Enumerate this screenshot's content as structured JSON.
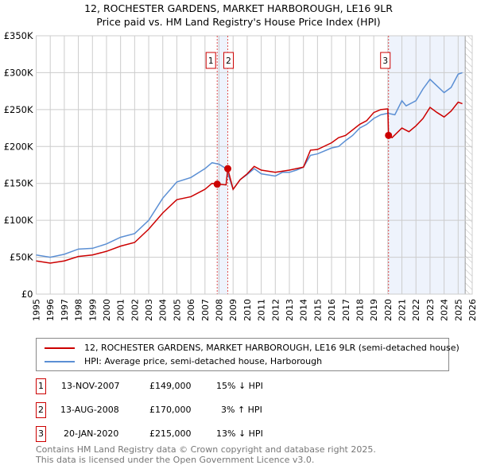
{
  "title_line1": "12, ROCHESTER GARDENS, MARKET HARBOROUGH, LE16 9LR",
  "title_line2": "Price paid vs. HM Land Registry's House Price Index (HPI)",
  "chart_data": {
    "type": "line",
    "title": "12, ROCHESTER GARDENS, MARKET HARBOROUGH, LE16 9LR — Price paid vs. HM Land Registry's House Price Index (HPI)",
    "xlim": [
      1995,
      2026
    ],
    "ylim": [
      0,
      350000
    ],
    "x_ticks": [
      "1995",
      "1996",
      "1997",
      "1998",
      "1999",
      "2000",
      "2001",
      "2002",
      "2003",
      "2004",
      "2005",
      "2006",
      "2007",
      "2008",
      "2009",
      "2010",
      "2011",
      "2012",
      "2013",
      "2014",
      "2015",
      "2016",
      "2017",
      "2018",
      "2019",
      "2020",
      "2021",
      "2022",
      "2023",
      "2024",
      "2025",
      "2026"
    ],
    "y_ticks": [
      {
        "v": 0,
        "label": "£0"
      },
      {
        "v": 50000,
        "label": "£50K"
      },
      {
        "v": 100000,
        "label": "£100K"
      },
      {
        "v": 150000,
        "label": "£150K"
      },
      {
        "v": 200000,
        "label": "£200K"
      },
      {
        "v": 250000,
        "label": "£250K"
      },
      {
        "v": 300000,
        "label": "£300K"
      },
      {
        "v": 350000,
        "label": "£350K"
      }
    ],
    "grid": true,
    "series": [
      {
        "name": "12, ROCHESTER GARDENS, MARKET HARBOROUGH, LE16 9LR (semi-detached house)",
        "color": "#cc0000",
        "x": [
          1995,
          1996,
          1997,
          1998,
          1999,
          2000,
          2001,
          2002,
          2003,
          2004,
          2005,
          2006,
          2007,
          2007.5,
          2007.87,
          2008.5,
          2008.62,
          2009,
          2009.5,
          2010,
          2010.5,
          2011,
          2012,
          2013,
          2014,
          2014.5,
          2015,
          2016,
          2016.5,
          2017,
          2018,
          2018.5,
          2019,
          2019.5,
          2020.0,
          2020.05,
          2020.3,
          2021,
          2021.5,
          2022,
          2022.5,
          2023,
          2023.5,
          2024,
          2024.5,
          2025,
          2025.3
        ],
        "y": [
          45000,
          42000,
          45000,
          51000,
          53000,
          58000,
          65000,
          70000,
          88000,
          110000,
          128000,
          132000,
          142000,
          150000,
          149000,
          148000,
          170000,
          142000,
          155000,
          163000,
          173000,
          168000,
          165000,
          168000,
          172000,
          195000,
          196000,
          205000,
          212000,
          215000,
          230000,
          235000,
          246000,
          250000,
          251000,
          215000,
          212000,
          225000,
          220000,
          228000,
          238000,
          253000,
          246000,
          240000,
          248000,
          260000,
          258000
        ]
      },
      {
        "name": "HPI: Average price, semi-detached house, Harborough",
        "color": "#5b8fd4",
        "x": [
          1995,
          1996,
          1997,
          1998,
          1999,
          2000,
          2001,
          2002,
          2003,
          2004,
          2005,
          2006,
          2007,
          2007.5,
          2008,
          2008.5,
          2009,
          2009.5,
          2010,
          2010.5,
          2011,
          2012,
          2012.5,
          2013,
          2013.5,
          2014,
          2014.5,
          2015,
          2016,
          2016.5,
          2017,
          2017.5,
          2018,
          2018.5,
          2019,
          2019.5,
          2020,
          2020.5,
          2021,
          2021.3,
          2022,
          2022.5,
          2023,
          2023.5,
          2024,
          2024.5,
          2025,
          2025.3
        ],
        "y": [
          53000,
          50000,
          54000,
          61000,
          62000,
          68000,
          77000,
          82000,
          100000,
          130000,
          152000,
          158000,
          170000,
          178000,
          176000,
          170000,
          142000,
          155000,
          162000,
          170000,
          163000,
          160000,
          165000,
          165000,
          168000,
          172000,
          188000,
          190000,
          198000,
          200000,
          208000,
          215000,
          225000,
          230000,
          238000,
          243000,
          245000,
          243000,
          262000,
          255000,
          262000,
          278000,
          291000,
          282000,
          273000,
          280000,
          298000,
          300000
        ]
      }
    ],
    "sales": [
      {
        "id": "1",
        "x": 2007.87,
        "y": 149000
      },
      {
        "id": "2",
        "x": 2008.62,
        "y": 170000
      },
      {
        "id": "3",
        "x": 2020.05,
        "y": 215000
      }
    ],
    "shaded_ranges": [
      [
        2007.87,
        2008.62
      ],
      [
        2020.05,
        2025.5
      ]
    ],
    "hatched_from": 2025.5,
    "legend_position": "bottom"
  },
  "legend": {
    "red": "12, ROCHESTER GARDENS, MARKET HARBOROUGH, LE16 9LR (semi-detached house)",
    "blue": "HPI: Average price, semi-detached house, Harborough"
  },
  "transactions": [
    {
      "id": "1",
      "date": "13-NOV-2007",
      "price": "£149,000",
      "hpi": "15% ↓ HPI"
    },
    {
      "id": "2",
      "date": "13-AUG-2008",
      "price": "£170,000",
      "hpi": "3% ↑ HPI"
    },
    {
      "id": "3",
      "date": "20-JAN-2020",
      "price": "£215,000",
      "hpi": "13% ↓ HPI"
    }
  ],
  "footer": {
    "line1": "Contains HM Land Registry data © Crown copyright and database right 2025.",
    "line2": "This data is licensed under the Open Government Licence v3.0."
  }
}
